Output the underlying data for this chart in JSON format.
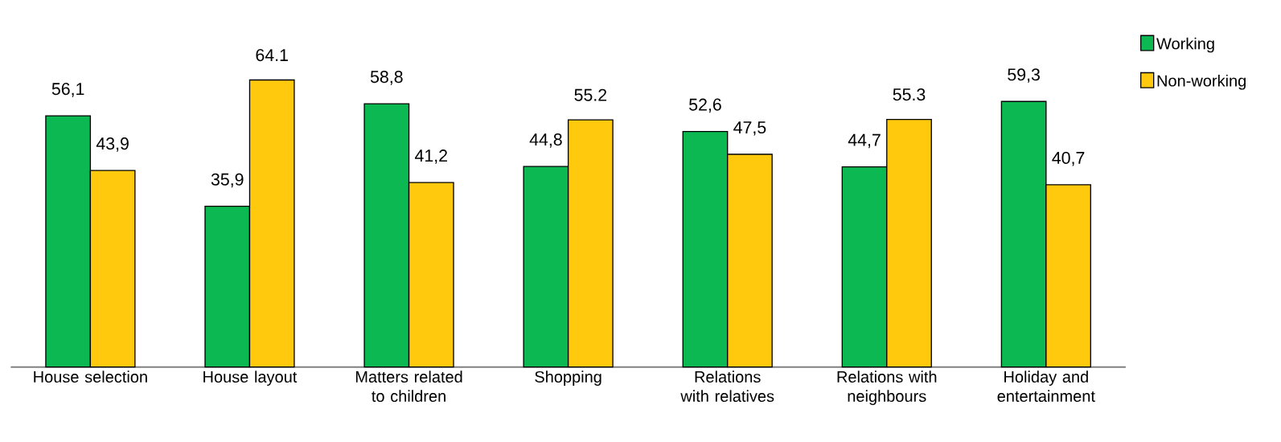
{
  "chart_data": {
    "type": "bar",
    "categories": [
      "House selection",
      "House layout",
      "Matters related to children",
      "Shopping",
      "Relations with relatives",
      "Relations with neighbours",
      "Holiday and entertainment"
    ],
    "series": [
      {
        "name": "Working",
        "color": "#0cb851",
        "values": [
          56.1,
          35.9,
          58.8,
          44.8,
          52.6,
          44.7,
          59.3
        ],
        "value_labels": [
          "56,1",
          "35,9",
          "58,8",
          "44,8",
          "52,6",
          "44,7",
          "59,3"
        ]
      },
      {
        "name": "Non-working",
        "color": "#ffc90e",
        "values": [
          43.9,
          64.1,
          41.2,
          55.2,
          47.5,
          55.3,
          40.7
        ],
        "value_labels": [
          "43,9",
          "64.1",
          "41,2",
          "55.2",
          "47,5",
          "55.3",
          "40,7"
        ]
      }
    ],
    "legend": "top right"
  }
}
